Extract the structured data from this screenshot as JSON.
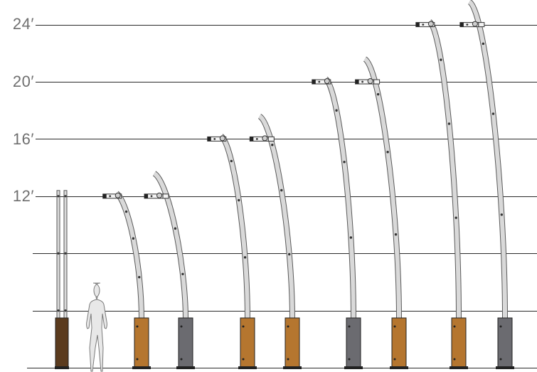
{
  "height_labels": [
    "24′",
    "20′",
    "16′",
    "12′"
  ],
  "colors": {
    "gridline": "#2a2a2a",
    "pole_fill": "#d9d9d9",
    "pole_stroke": "#5a5a5a",
    "base_wood": "#b5762f",
    "base_steel": "#6b6b70",
    "base_dark_wood": "#5b3b1e",
    "person_fill": "#e8e8e8",
    "person_stroke": "#7a7a7a",
    "label_color": "#6f6f6f"
  },
  "poles": [
    {
      "height_ft": 12,
      "base": "dark-wood",
      "style": "straight-twin"
    },
    {
      "height_ft": 12,
      "base": "wood",
      "style": "curved-arm"
    },
    {
      "height_ft": 12,
      "base": "steel",
      "style": "curved-over"
    },
    {
      "height_ft": 16,
      "base": "wood",
      "style": "curved-arm"
    },
    {
      "height_ft": 16,
      "base": "wood",
      "style": "curved-over"
    },
    {
      "height_ft": 20,
      "base": "steel",
      "style": "curved-arm"
    },
    {
      "height_ft": 20,
      "base": "wood",
      "style": "curved-over"
    },
    {
      "height_ft": 24,
      "base": "wood",
      "style": "curved-arm"
    },
    {
      "height_ft": 24,
      "base": "steel",
      "style": "curved-over"
    }
  ],
  "figure": {
    "subject": "human-silhouette"
  }
}
